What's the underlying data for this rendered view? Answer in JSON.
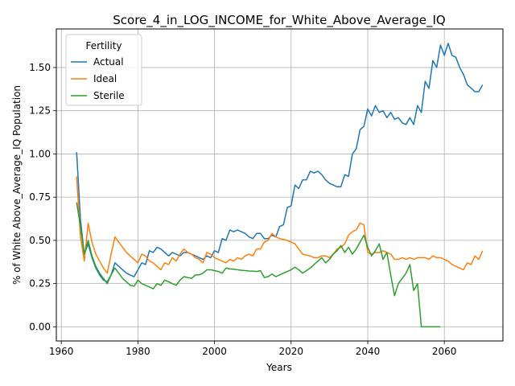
{
  "chart_data": {
    "type": "line",
    "title": "Score_4_in_LOG_INCOME_for_White_Above_Average_IQ",
    "xlabel": "Years",
    "ylabel": "% of White Above_Average_IQ Population",
    "xlim": [
      1958.7,
      2075.3
    ],
    "ylim": [
      -0.082,
      1.723
    ],
    "xticks": [
      1960,
      1980,
      2000,
      2020,
      2040,
      2060
    ],
    "xtick_labels": [
      "1960",
      "1980",
      "2000",
      "2020",
      "2040",
      "2060"
    ],
    "yticks": [
      0.0,
      0.25,
      0.5,
      0.75,
      1.0,
      1.25,
      1.5
    ],
    "ytick_labels": [
      "0.00",
      "0.25",
      "0.50",
      "0.75",
      "1.00",
      "1.25",
      "1.50"
    ],
    "grid": true,
    "legend": {
      "title": "Fertility",
      "placement": "upper-left"
    },
    "series": [
      {
        "name": "Actual",
        "color": "#1f77b4",
        "points": [
          [
            1964,
            1.01
          ],
          [
            1965,
            0.62
          ],
          [
            1966,
            0.42
          ],
          [
            1967,
            0.48
          ],
          [
            1968,
            0.4
          ],
          [
            1969,
            0.34
          ],
          [
            1970,
            0.3
          ],
          [
            1971,
            0.27
          ],
          [
            1972,
            0.26
          ],
          [
            1973,
            0.3
          ],
          [
            1974,
            0.37
          ],
          [
            1975,
            0.35
          ],
          [
            1976,
            0.33
          ],
          [
            1977,
            0.31
          ],
          [
            1978,
            0.3
          ],
          [
            1979,
            0.29
          ],
          [
            1980,
            0.33
          ],
          [
            1981,
            0.37
          ],
          [
            1982,
            0.36
          ],
          [
            1983,
            0.44
          ],
          [
            1984,
            0.43
          ],
          [
            1985,
            0.46
          ],
          [
            1986,
            0.45
          ],
          [
            1987,
            0.43
          ],
          [
            1988,
            0.41
          ],
          [
            1989,
            0.43
          ],
          [
            1990,
            0.42
          ],
          [
            1991,
            0.41
          ],
          [
            1992,
            0.43
          ],
          [
            1993,
            0.43
          ],
          [
            1994,
            0.42
          ],
          [
            1995,
            0.41
          ],
          [
            1996,
            0.4
          ],
          [
            1997,
            0.39
          ],
          [
            1998,
            0.41
          ],
          [
            1999,
            0.4
          ],
          [
            2000,
            0.44
          ],
          [
            2001,
            0.43
          ],
          [
            2002,
            0.51
          ],
          [
            2003,
            0.5
          ],
          [
            2004,
            0.56
          ],
          [
            2005,
            0.55
          ],
          [
            2006,
            0.56
          ],
          [
            2007,
            0.55
          ],
          [
            2008,
            0.54
          ],
          [
            2009,
            0.52
          ],
          [
            2010,
            0.51
          ],
          [
            2011,
            0.54
          ],
          [
            2012,
            0.54
          ],
          [
            2013,
            0.51
          ],
          [
            2014,
            0.51
          ],
          [
            2015,
            0.53
          ],
          [
            2016,
            0.52
          ],
          [
            2017,
            0.58
          ],
          [
            2018,
            0.59
          ],
          [
            2019,
            0.69
          ],
          [
            2020,
            0.7
          ],
          [
            2021,
            0.82
          ],
          [
            2022,
            0.8
          ],
          [
            2023,
            0.85
          ],
          [
            2024,
            0.85
          ],
          [
            2025,
            0.9
          ],
          [
            2026,
            0.89
          ],
          [
            2027,
            0.9
          ],
          [
            2028,
            0.88
          ],
          [
            2029,
            0.85
          ],
          [
            2030,
            0.83
          ],
          [
            2031,
            0.82
          ],
          [
            2032,
            0.81
          ],
          [
            2033,
            0.81
          ],
          [
            2034,
            0.88
          ],
          [
            2035,
            0.87
          ],
          [
            2036,
            1.0
          ],
          [
            2037,
            1.03
          ],
          [
            2038,
            1.14
          ],
          [
            2039,
            1.16
          ],
          [
            2040,
            1.26
          ],
          [
            2041,
            1.22
          ],
          [
            2042,
            1.28
          ],
          [
            2043,
            1.24
          ],
          [
            2044,
            1.25
          ],
          [
            2045,
            1.21
          ],
          [
            2046,
            1.24
          ],
          [
            2047,
            1.2
          ],
          [
            2048,
            1.21
          ],
          [
            2049,
            1.18
          ],
          [
            2050,
            1.17
          ],
          [
            2051,
            1.21
          ],
          [
            2052,
            1.17
          ],
          [
            2053,
            1.28
          ],
          [
            2054,
            1.24
          ],
          [
            2055,
            1.42
          ],
          [
            2056,
            1.38
          ],
          [
            2057,
            1.54
          ],
          [
            2058,
            1.5
          ],
          [
            2059,
            1.63
          ],
          [
            2060,
            1.57
          ],
          [
            2061,
            1.64
          ],
          [
            2062,
            1.57
          ],
          [
            2063,
            1.56
          ],
          [
            2064,
            1.5
          ],
          [
            2065,
            1.46
          ],
          [
            2066,
            1.4
          ],
          [
            2067,
            1.38
          ],
          [
            2068,
            1.36
          ],
          [
            2069,
            1.36
          ],
          [
            2070,
            1.4
          ]
        ]
      },
      {
        "name": "Ideal",
        "color": "#ff7f0e",
        "points": [
          [
            1964,
            0.87
          ],
          [
            1965,
            0.52
          ],
          [
            1966,
            0.38
          ],
          [
            1967,
            0.6
          ],
          [
            1968,
            0.49
          ],
          [
            1969,
            0.42
          ],
          [
            1970,
            0.38
          ],
          [
            1971,
            0.34
          ],
          [
            1972,
            0.31
          ],
          [
            1973,
            0.42
          ],
          [
            1974,
            0.52
          ],
          [
            1975,
            0.49
          ],
          [
            1976,
            0.46
          ],
          [
            1977,
            0.43
          ],
          [
            1978,
            0.41
          ],
          [
            1979,
            0.39
          ],
          [
            1980,
            0.37
          ],
          [
            1981,
            0.42
          ],
          [
            1982,
            0.41
          ],
          [
            1983,
            0.38
          ],
          [
            1984,
            0.37
          ],
          [
            1985,
            0.35
          ],
          [
            1986,
            0.33
          ],
          [
            1987,
            0.37
          ],
          [
            1988,
            0.36
          ],
          [
            1989,
            0.4
          ],
          [
            1990,
            0.38
          ],
          [
            1991,
            0.42
          ],
          [
            1992,
            0.45
          ],
          [
            1993,
            0.43
          ],
          [
            1994,
            0.42
          ],
          [
            1995,
            0.4
          ],
          [
            1996,
            0.39
          ],
          [
            1997,
            0.37
          ],
          [
            1998,
            0.43
          ],
          [
            1999,
            0.42
          ],
          [
            2000,
            0.4
          ],
          [
            2001,
            0.39
          ],
          [
            2002,
            0.38
          ],
          [
            2003,
            0.37
          ],
          [
            2004,
            0.39
          ],
          [
            2005,
            0.38
          ],
          [
            2006,
            0.4
          ],
          [
            2007,
            0.39
          ],
          [
            2008,
            0.41
          ],
          [
            2009,
            0.42
          ],
          [
            2010,
            0.41
          ],
          [
            2011,
            0.45
          ],
          [
            2012,
            0.45
          ],
          [
            2013,
            0.49
          ],
          [
            2014,
            0.5
          ],
          [
            2015,
            0.54
          ],
          [
            2016,
            0.52
          ],
          [
            2017,
            0.51
          ],
          [
            2018,
            0.505
          ],
          [
            2019,
            0.5
          ],
          [
            2020,
            0.49
          ],
          [
            2021,
            0.48
          ],
          [
            2022,
            0.45
          ],
          [
            2023,
            0.42
          ],
          [
            2024,
            0.415
          ],
          [
            2025,
            0.41
          ],
          [
            2026,
            0.4
          ],
          [
            2027,
            0.4
          ],
          [
            2028,
            0.41
          ],
          [
            2029,
            0.41
          ],
          [
            2030,
            0.4
          ],
          [
            2031,
            0.42
          ],
          [
            2032,
            0.45
          ],
          [
            2033,
            0.46
          ],
          [
            2034,
            0.48
          ],
          [
            2035,
            0.53
          ],
          [
            2036,
            0.55
          ],
          [
            2037,
            0.56
          ],
          [
            2038,
            0.6
          ],
          [
            2039,
            0.59
          ],
          [
            2040,
            0.43
          ],
          [
            2041,
            0.42
          ],
          [
            2042,
            0.43
          ],
          [
            2043,
            0.43
          ],
          [
            2044,
            0.44
          ],
          [
            2045,
            0.43
          ],
          [
            2046,
            0.42
          ],
          [
            2047,
            0.39
          ],
          [
            2048,
            0.39
          ],
          [
            2049,
            0.4
          ],
          [
            2050,
            0.39
          ],
          [
            2051,
            0.4
          ],
          [
            2052,
            0.39
          ],
          [
            2053,
            0.4
          ],
          [
            2054,
            0.4
          ],
          [
            2055,
            0.4
          ],
          [
            2056,
            0.39
          ],
          [
            2057,
            0.41
          ],
          [
            2058,
            0.4
          ],
          [
            2059,
            0.4
          ],
          [
            2060,
            0.39
          ],
          [
            2061,
            0.38
          ],
          [
            2062,
            0.36
          ],
          [
            2063,
            0.35
          ],
          [
            2064,
            0.34
          ],
          [
            2065,
            0.33
          ],
          [
            2066,
            0.37
          ],
          [
            2067,
            0.36
          ],
          [
            2068,
            0.41
          ],
          [
            2069,
            0.39
          ],
          [
            2070,
            0.44
          ]
        ]
      },
      {
        "name": "Sterile",
        "color": "#2ca02c",
        "points": [
          [
            1964,
            0.72
          ],
          [
            1965,
            0.58
          ],
          [
            1966,
            0.42
          ],
          [
            1967,
            0.5
          ],
          [
            1968,
            0.41
          ],
          [
            1969,
            0.35
          ],
          [
            1970,
            0.31
          ],
          [
            1971,
            0.28
          ],
          [
            1972,
            0.25
          ],
          [
            1973,
            0.3
          ],
          [
            1974,
            0.34
          ],
          [
            1975,
            0.31
          ],
          [
            1976,
            0.28
          ],
          [
            1977,
            0.26
          ],
          [
            1978,
            0.24
          ],
          [
            1979,
            0.235
          ],
          [
            1980,
            0.27
          ],
          [
            1981,
            0.25
          ],
          [
            1982,
            0.24
          ],
          [
            1983,
            0.23
          ],
          [
            1984,
            0.22
          ],
          [
            1985,
            0.25
          ],
          [
            1986,
            0.24
          ],
          [
            1987,
            0.27
          ],
          [
            1988,
            0.26
          ],
          [
            1989,
            0.25
          ],
          [
            1990,
            0.24
          ],
          [
            1991,
            0.27
          ],
          [
            1992,
            0.29
          ],
          [
            1993,
            0.285
          ],
          [
            1994,
            0.28
          ],
          [
            1995,
            0.3
          ],
          [
            1996,
            0.3
          ],
          [
            1997,
            0.31
          ],
          [
            1998,
            0.33
          ],
          [
            1999,
            0.33
          ],
          [
            2000,
            0.325
          ],
          [
            2001,
            0.32
          ],
          [
            2002,
            0.31
          ],
          [
            2003,
            0.34
          ],
          [
            2004,
            0.335
          ],
          [
            2005,
            0.333
          ],
          [
            2006,
            0.33
          ],
          [
            2007,
            0.327
          ],
          [
            2008,
            0.325
          ],
          [
            2009,
            0.323
          ],
          [
            2010,
            0.322
          ],
          [
            2011,
            0.32
          ],
          [
            2012,
            0.325
          ],
          [
            2013,
            0.285
          ],
          [
            2014,
            0.29
          ],
          [
            2015,
            0.305
          ],
          [
            2016,
            0.29
          ],
          [
            2017,
            0.3
          ],
          [
            2018,
            0.31
          ],
          [
            2019,
            0.32
          ],
          [
            2020,
            0.33
          ],
          [
            2021,
            0.345
          ],
          [
            2022,
            0.33
          ],
          [
            2023,
            0.31
          ],
          [
            2024,
            0.325
          ],
          [
            2025,
            0.34
          ],
          [
            2026,
            0.36
          ],
          [
            2027,
            0.38
          ],
          [
            2028,
            0.4
          ],
          [
            2029,
            0.37
          ],
          [
            2030,
            0.39
          ],
          [
            2031,
            0.42
          ],
          [
            2032,
            0.44
          ],
          [
            2033,
            0.47
          ],
          [
            2034,
            0.43
          ],
          [
            2035,
            0.46
          ],
          [
            2036,
            0.42
          ],
          [
            2037,
            0.45
          ],
          [
            2038,
            0.49
          ],
          [
            2039,
            0.53
          ],
          [
            2040,
            0.46
          ],
          [
            2041,
            0.41
          ],
          [
            2042,
            0.44
          ],
          [
            2043,
            0.48
          ],
          [
            2044,
            0.39
          ],
          [
            2045,
            0.43
          ],
          [
            2046,
            0.3
          ],
          [
            2047,
            0.18
          ],
          [
            2048,
            0.25
          ],
          [
            2049,
            0.28
          ],
          [
            2050,
            0.31
          ],
          [
            2051,
            0.36
          ],
          [
            2052,
            0.21
          ],
          [
            2053,
            0.25
          ],
          [
            2054,
            0.0
          ],
          [
            2055,
            0.0
          ],
          [
            2056,
            0.0
          ],
          [
            2057,
            0.0
          ],
          [
            2058,
            0.0
          ],
          [
            2059,
            0.0
          ]
        ]
      }
    ]
  }
}
